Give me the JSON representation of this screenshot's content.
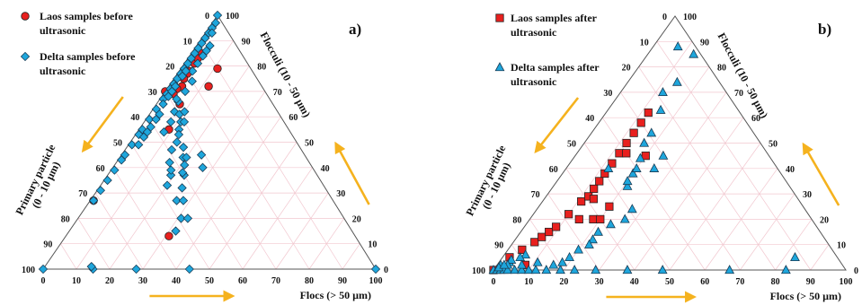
{
  "colors": {
    "laos": "#e8201e",
    "delta": "#1ea6dc",
    "arrow": "#f5b21e",
    "grid": "#f2c7cf",
    "frame": "#555555"
  },
  "chart_data": [
    {
      "type": "scatter",
      "subtype": "ternary",
      "panel_label": "a)",
      "axes": {
        "primary": "Primary particle (0 - 10 µm)",
        "flocculi": "Flocculi (10 - 50 µm)",
        "flocs": "Flocs (> 50 µm)"
      },
      "ticks": [
        "0",
        "10",
        "20",
        "30",
        "40",
        "50",
        "60",
        "70",
        "80",
        "90",
        "100"
      ],
      "point_format": "[primary %, flocculi %, flocs %]",
      "series": [
        {
          "name": "Laos samples before ultrasonic",
          "marker": "circle",
          "points": [
            [
              12,
              85,
              3
            ],
            [
              16,
              81,
              3
            ],
            [
              19,
              78,
              3
            ],
            [
              20,
              77,
              3
            ],
            [
              22,
              75,
              3
            ],
            [
              24,
              72,
              4
            ],
            [
              26,
              71,
              3
            ],
            [
              28,
              69,
              3
            ],
            [
              28,
              65,
              7
            ],
            [
              36,
              55,
              9
            ],
            [
              16,
              72,
              12
            ],
            [
              14,
              83,
              3
            ],
            [
              10,
              79,
              11
            ],
            [
              30,
              70,
              0
            ],
            [
              56,
              13,
              31
            ],
            [
              72,
              27,
              1
            ]
          ]
        },
        {
          "name": "Delta samples before ultrasonic",
          "marker": "diamond",
          "points": [
            [
              0,
              100,
              0
            ],
            [
              2,
              97,
              1
            ],
            [
              4,
              95,
              1
            ],
            [
              6,
              93,
              1
            ],
            [
              8,
              91,
              1
            ],
            [
              10,
              89,
              1
            ],
            [
              12,
              87,
              1
            ],
            [
              14,
              85,
              1
            ],
            [
              16,
              83,
              1
            ],
            [
              18,
              81,
              1
            ],
            [
              20,
              79,
              1
            ],
            [
              22,
              77,
              1
            ],
            [
              24,
              75,
              1
            ],
            [
              26,
              73,
              1
            ],
            [
              28,
              71,
              1
            ],
            [
              30,
              69,
              1
            ],
            [
              32,
              67,
              1
            ],
            [
              36,
              63,
              1
            ],
            [
              40,
              59,
              1
            ],
            [
              44,
              55,
              1
            ],
            [
              46,
              53,
              1
            ],
            [
              50,
              49,
              1
            ],
            [
              54,
              45,
              1
            ],
            [
              56,
              43,
              1
            ],
            [
              60,
              39,
              1
            ],
            [
              64,
              35,
              1
            ],
            [
              68,
              31,
              1
            ],
            [
              72,
              27,
              1
            ],
            [
              5,
              93,
              2
            ],
            [
              8,
              88,
              4
            ],
            [
              10,
              86,
              4
            ],
            [
              12,
              84,
              4
            ],
            [
              15,
              81,
              4
            ],
            [
              18,
              78,
              4
            ],
            [
              20,
              74,
              6
            ],
            [
              24,
              70,
              6
            ],
            [
              28,
              66,
              6
            ],
            [
              31,
              62,
              7
            ],
            [
              34,
              58,
              8
            ],
            [
              38,
              54,
              8
            ],
            [
              20,
              78,
              2
            ],
            [
              22,
              76,
              2
            ],
            [
              26,
              72,
              2
            ],
            [
              28,
              70,
              2
            ],
            [
              30,
              68,
              2
            ],
            [
              33,
              65,
              2
            ],
            [
              36,
              61,
              3
            ],
            [
              38,
              59,
              3
            ],
            [
              41,
              56,
              3
            ],
            [
              43,
              54,
              3
            ],
            [
              45,
              52,
              3
            ],
            [
              48,
              49,
              3
            ],
            [
              28,
              67,
              5
            ],
            [
              30,
              61,
              9
            ],
            [
              33,
              55,
              12
            ],
            [
              36,
              50,
              14
            ],
            [
              39,
              47,
              14
            ],
            [
              42,
              42,
              16
            ],
            [
              44,
              37,
              19
            ],
            [
              28,
              62,
              10
            ],
            [
              31,
              58,
              11
            ],
            [
              34,
              53,
              13
            ],
            [
              37,
              44,
              19
            ],
            [
              40,
              37,
              23
            ],
            [
              43,
              39,
              18
            ],
            [
              47,
              33,
              20
            ],
            [
              30,
              58,
              12
            ],
            [
              35,
              48,
              17
            ],
            [
              38,
              41,
              21
            ],
            [
              43,
              32,
              25
            ],
            [
              47,
              27,
              26
            ],
            [
              31,
              45,
              24
            ],
            [
              33,
              40,
              27
            ],
            [
              36,
              44,
              20
            ],
            [
              40,
              38,
              22
            ],
            [
              45,
              27,
              28
            ],
            [
              49,
              20,
              31
            ],
            [
              53,
              15,
              32
            ],
            [
              47,
              20,
              33
            ],
            [
              56,
              0,
              44
            ],
            [
              72,
              0,
              28
            ],
            [
              85,
              0,
              15
            ],
            [
              100,
              0,
              0
            ],
            [
              0,
              0,
              100
            ],
            [
              85,
              1,
              14
            ]
          ]
        }
      ]
    },
    {
      "type": "scatter",
      "subtype": "ternary",
      "panel_label": "b)",
      "axes": {
        "primary": "Primary particle (0 - 10 µm)",
        "flocculi": "Flocculi (10 - 50 µm)",
        "flocs": "Flocs (> 50 µm)"
      },
      "ticks": [
        "0",
        "10",
        "20",
        "30",
        "40",
        "50",
        "60",
        "70",
        "80",
        "90",
        "100"
      ],
      "point_format": "[primary %, flocculi %, flocs %]",
      "series": [
        {
          "name": "Laos samples after ultrasonic",
          "marker": "square",
          "points": [
            [
              100,
              0,
              0
            ],
            [
              93,
              5,
              2
            ],
            [
              88,
              8,
              4
            ],
            [
              83,
              11,
              6
            ],
            [
              80,
              13,
              7
            ],
            [
              77,
              15,
              8
            ],
            [
              74,
              17,
              9
            ],
            [
              68,
              22,
              10
            ],
            [
              62,
              27,
              11
            ],
            [
              59,
              29,
              12
            ],
            [
              56,
              32,
              12
            ],
            [
              53,
              35,
              12
            ],
            [
              50,
              38,
              12
            ],
            [
              46,
              42,
              12
            ],
            [
              42,
              46,
              12
            ],
            [
              38,
              50,
              12
            ],
            [
              34,
              54,
              12
            ],
            [
              30,
              58,
              12
            ],
            [
              26,
              62,
              12
            ],
            [
              35,
              45,
              20
            ],
            [
              40,
              46,
              14
            ],
            [
              55,
              25,
              20
            ],
            [
              58,
              28,
              14
            ],
            [
              66,
              20,
              14
            ],
            [
              90,
              2,
              8
            ],
            [
              62,
              20,
              18
            ],
            [
              60,
              20,
              20
            ]
          ]
        },
        {
          "name": "Delta samples after ultrasonic",
          "marker": "triangle",
          "points": [
            [
              100,
              0,
              0
            ],
            [
              99,
              0,
              1
            ],
            [
              99,
              0,
              1
            ],
            [
              98,
              0,
              2
            ],
            [
              97,
              0,
              3
            ],
            [
              96,
              0,
              4
            ],
            [
              94,
              0,
              6
            ],
            [
              92,
              0,
              8
            ],
            [
              90,
              0,
              10
            ],
            [
              88,
              0,
              12
            ],
            [
              85,
              0,
              15
            ],
            [
              81,
              0,
              19
            ],
            [
              77,
              0,
              23
            ],
            [
              71,
              0,
              29
            ],
            [
              62,
              0,
              38
            ],
            [
              52,
              0,
              48
            ],
            [
              33,
              0,
              67
            ],
            [
              17,
              0,
              83
            ],
            [
              12,
              5,
              83
            ],
            [
              2,
              85,
              13
            ],
            [
              5,
              88,
              7
            ],
            [
              12,
              74,
              14
            ],
            [
              18,
              70,
              12
            ],
            [
              22,
              63,
              15
            ],
            [
              29,
              54,
              17
            ],
            [
              33,
              50,
              17
            ],
            [
              37,
              44,
              19
            ],
            [
              42,
              38,
              20
            ],
            [
              46,
              33,
              21
            ],
            [
              49,
              24,
              27
            ],
            [
              53,
              20,
              27
            ],
            [
              58,
              18,
              24
            ],
            [
              63,
              15,
              22
            ],
            [
              66,
              12,
              22
            ],
            [
              68,
              10,
              22
            ],
            [
              72,
              8,
              20
            ],
            [
              76,
              5,
              19
            ],
            [
              79,
              3,
              18
            ],
            [
              82,
              2,
              16
            ],
            [
              86,
              3,
              11
            ],
            [
              88,
              6,
              6
            ],
            [
              90,
              5,
              5
            ],
            [
              94,
              3,
              3
            ],
            [
              93,
              4,
              3
            ],
            [
              95,
              2,
              3
            ],
            [
              97,
              2,
              1
            ],
            [
              98,
              1,
              1
            ],
            [
              96,
              2,
              2
            ],
            [
              91,
              2,
              7
            ],
            [
              48,
              40,
              12
            ],
            [
              30,
              45,
              25
            ],
            [
              35,
              40,
              25
            ],
            [
              40,
              40,
              20
            ],
            [
              45,
              35,
              20
            ]
          ]
        }
      ]
    }
  ]
}
